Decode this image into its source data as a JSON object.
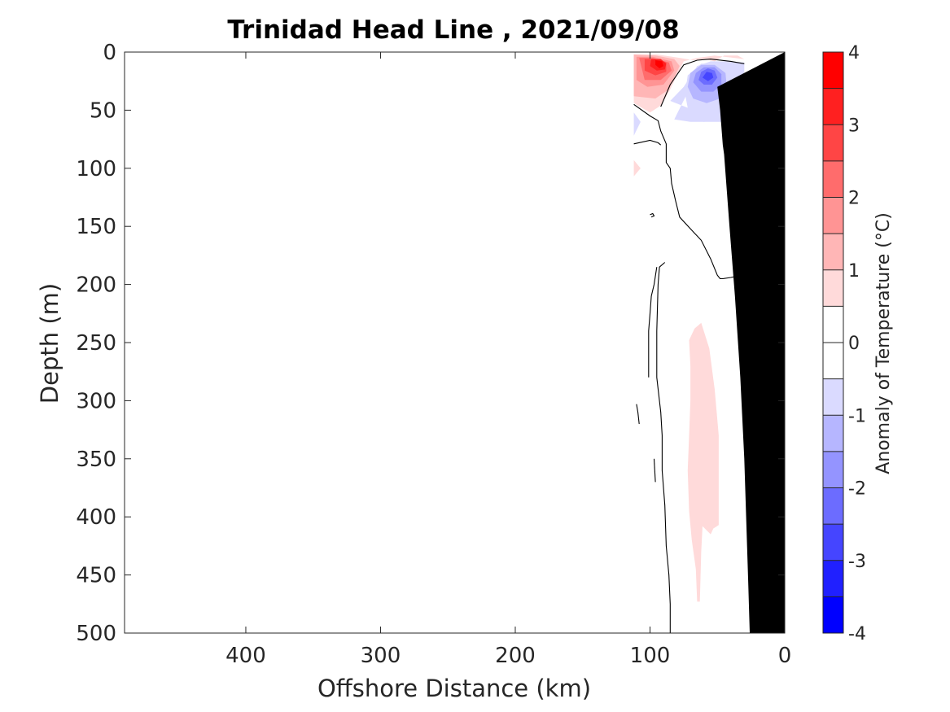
{
  "chart_data": {
    "type": "heatmap",
    "title": "Trinidad Head Line , 2021/09/08",
    "xlabel": "Offshore Distance (km)",
    "ylabel": "Depth (m)",
    "xlim": [
      490,
      0
    ],
    "ylim": [
      0,
      500
    ],
    "x_reversed": true,
    "y_reversed": true,
    "x_ticks": [
      400,
      300,
      200,
      100,
      0
    ],
    "y_ticks": [
      0,
      50,
      100,
      150,
      200,
      250,
      300,
      350,
      400,
      450,
      500
    ],
    "colorbar": {
      "label": "Anomaly of Temperature (°C)",
      "ticks": [
        4,
        3,
        2,
        1,
        0,
        -1,
        -2,
        -3,
        -4
      ],
      "levels": [
        {
          "lo": 3.5,
          "hi": 4.0,
          "color": "#ff0000"
        },
        {
          "lo": 3.0,
          "hi": 3.5,
          "color": "#ff2020"
        },
        {
          "lo": 2.5,
          "hi": 3.0,
          "color": "#ff4545"
        },
        {
          "lo": 2.0,
          "hi": 2.5,
          "color": "#ff6c6c"
        },
        {
          "lo": 1.5,
          "hi": 2.0,
          "color": "#ff9494"
        },
        {
          "lo": 1.0,
          "hi": 1.5,
          "color": "#ffb6b6"
        },
        {
          "lo": 0.5,
          "hi": 1.0,
          "color": "#ffdada"
        },
        {
          "lo": 0.0,
          "hi": 0.5,
          "color": "#ffffff"
        },
        {
          "lo": -0.5,
          "hi": 0.0,
          "color": "#ffffff"
        },
        {
          "lo": -1.0,
          "hi": -0.5,
          "color": "#dadaff"
        },
        {
          "lo": -1.5,
          "hi": -1.0,
          "color": "#b6b6ff"
        },
        {
          "lo": -2.0,
          "hi": -1.5,
          "color": "#9494ff"
        },
        {
          "lo": -2.5,
          "hi": -2.0,
          "color": "#6c6cff"
        },
        {
          "lo": -3.0,
          "hi": -2.5,
          "color": "#4545ff"
        },
        {
          "lo": -3.5,
          "hi": -3.0,
          "color": "#2020ff"
        },
        {
          "lo": -4.0,
          "hi": -3.5,
          "color": "#0000ff"
        }
      ]
    },
    "regions": [
      {
        "anomaly": 0.75,
        "points": [
          [
            112,
            2
          ],
          [
            95,
            2
          ],
          [
            78,
            5
          ],
          [
            68,
            7
          ],
          [
            60,
            6
          ],
          [
            52,
            8
          ],
          [
            45,
            3
          ],
          [
            35,
            3
          ],
          [
            30,
            6
          ],
          [
            52,
            3
          ],
          [
            65,
            5
          ],
          [
            75,
            8
          ],
          [
            85,
            32
          ],
          [
            92,
            46
          ],
          [
            100,
            52
          ],
          [
            112,
            44
          ]
        ]
      },
      {
        "anomaly": 1.25,
        "points": [
          [
            112,
            2
          ],
          [
            96,
            3
          ],
          [
            82,
            6
          ],
          [
            78,
            12
          ],
          [
            86,
            32
          ],
          [
            96,
            40
          ],
          [
            112,
            38
          ]
        ]
      },
      {
        "anomaly": 1.75,
        "points": [
          [
            110,
            4
          ],
          [
            98,
            4
          ],
          [
            84,
            8
          ],
          [
            82,
            16
          ],
          [
            90,
            28
          ],
          [
            102,
            30
          ],
          [
            110,
            24
          ]
        ]
      },
      {
        "anomaly": 2.25,
        "points": [
          [
            108,
            5
          ],
          [
            98,
            5
          ],
          [
            86,
            9
          ],
          [
            84,
            16
          ],
          [
            92,
            24
          ],
          [
            104,
            24
          ]
        ]
      },
      {
        "anomaly": 2.75,
        "points": [
          [
            104,
            6
          ],
          [
            96,
            6
          ],
          [
            88,
            9
          ],
          [
            88,
            17
          ],
          [
            96,
            20
          ],
          [
            104,
            16
          ]
        ]
      },
      {
        "anomaly": 3.25,
        "points": [
          [
            99,
            6
          ],
          [
            92,
            6
          ],
          [
            88,
            10
          ],
          [
            89,
            15
          ],
          [
            95,
            16
          ],
          [
            100,
            12
          ]
        ]
      },
      {
        "anomaly": 3.75,
        "points": [
          [
            96,
            7
          ],
          [
            91,
            8
          ],
          [
            90,
            12
          ],
          [
            93,
            14
          ],
          [
            96,
            11
          ]
        ]
      },
      {
        "anomaly": -0.75,
        "points": [
          [
            85,
            42
          ],
          [
            75,
            30
          ],
          [
            65,
            12
          ],
          [
            55,
            8
          ],
          [
            40,
            8
          ],
          [
            30,
            9
          ],
          [
            30,
            50
          ],
          [
            30,
            86
          ],
          [
            34,
            80
          ],
          [
            34,
            50
          ],
          [
            40,
            30
          ],
          [
            50,
            10
          ],
          [
            60,
            12
          ],
          [
            70,
            30
          ],
          [
            82,
            58
          ],
          [
            70,
            60
          ],
          [
            60,
            60
          ],
          [
            50,
            58
          ]
        ]
      },
      {
        "anomaly": -0.75,
        "points": [
          [
            74,
            36
          ],
          [
            72,
            20
          ],
          [
            62,
            10
          ],
          [
            50,
            10
          ],
          [
            42,
            18
          ],
          [
            38,
            32
          ],
          [
            34,
            50
          ],
          [
            30,
            88
          ],
          [
            30,
            60
          ],
          [
            34,
            56
          ],
          [
            40,
            60
          ],
          [
            50,
            60
          ],
          [
            60,
            60
          ],
          [
            68,
            58
          ],
          [
            72,
            48
          ]
        ]
      },
      {
        "anomaly": -1.25,
        "points": [
          [
            72,
            30
          ],
          [
            70,
            18
          ],
          [
            62,
            11
          ],
          [
            52,
            11
          ],
          [
            44,
            18
          ],
          [
            43,
            30
          ],
          [
            48,
            40
          ],
          [
            58,
            44
          ],
          [
            68,
            40
          ]
        ]
      },
      {
        "anomaly": -1.75,
        "points": [
          [
            68,
            26
          ],
          [
            66,
            18
          ],
          [
            60,
            13
          ],
          [
            52,
            13
          ],
          [
            47,
            19
          ],
          [
            47,
            28
          ],
          [
            53,
            34
          ],
          [
            62,
            34
          ]
        ]
      },
      {
        "anomaly": -2.25,
        "points": [
          [
            64,
            24
          ],
          [
            62,
            17
          ],
          [
            57,
            14
          ],
          [
            52,
            16
          ],
          [
            50,
            22
          ],
          [
            54,
            28
          ],
          [
            60,
            28
          ]
        ]
      },
      {
        "anomaly": -2.75,
        "points": [
          [
            61,
            22
          ],
          [
            58,
            17
          ],
          [
            54,
            18
          ],
          [
            53,
            22
          ],
          [
            57,
            25
          ]
        ]
      },
      {
        "anomaly": -0.75,
        "points": [
          [
            112,
            52
          ],
          [
            107,
            60
          ],
          [
            112,
            72
          ]
        ]
      },
      {
        "anomaly": 0.75,
        "points": [
          [
            112,
            93
          ],
          [
            107,
            100
          ],
          [
            112,
            107
          ]
        ]
      },
      {
        "anomaly": 0.75,
        "points": [
          [
            71,
            248
          ],
          [
            67,
            238
          ],
          [
            62,
            233
          ],
          [
            56,
            255
          ],
          [
            52,
            290
          ],
          [
            49,
            330
          ],
          [
            49,
            380
          ],
          [
            49,
            407
          ],
          [
            53,
            410
          ],
          [
            55,
            415
          ],
          [
            61,
            408
          ],
          [
            62,
            430
          ],
          [
            63,
            473
          ],
          [
            65,
            473
          ],
          [
            66,
            445
          ],
          [
            69,
            420
          ],
          [
            71,
            395
          ],
          [
            72,
            360
          ],
          [
            71,
            330
          ],
          [
            70,
            300
          ],
          [
            70,
            270
          ]
        ]
      }
    ],
    "contours_zero": [
      [
        [
          112,
          45
        ],
        [
          100,
          55
        ],
        [
          94,
          59
        ],
        [
          92,
          68
        ],
        [
          88,
          79
        ],
        [
          88,
          95
        ],
        [
          85,
          100
        ],
        [
          84,
          113
        ],
        [
          81,
          128
        ],
        [
          78,
          142
        ],
        [
          70,
          152
        ],
        [
          62,
          162
        ],
        [
          55,
          178
        ],
        [
          50,
          192
        ],
        [
          48,
          195
        ],
        [
          46,
          195
        ],
        [
          40,
          194
        ],
        [
          36,
          193
        ],
        [
          32,
          192
        ],
        [
          30,
          192
        ]
      ],
      [
        [
          112,
          79
        ],
        [
          100,
          76
        ],
        [
          94,
          78
        ],
        [
          92,
          80
        ]
      ],
      [
        [
          30,
          10
        ],
        [
          40,
          8
        ],
        [
          55,
          6
        ],
        [
          65,
          7
        ],
        [
          75,
          11
        ],
        [
          85,
          28
        ],
        [
          92,
          47
        ]
      ],
      [
        [
          89,
          181
        ],
        [
          93,
          185
        ],
        [
          94,
          200
        ],
        [
          95,
          240
        ],
        [
          95,
          280
        ],
        [
          92,
          310
        ],
        [
          91,
          330
        ],
        [
          91,
          360
        ],
        [
          89,
          390
        ],
        [
          88,
          425
        ],
        [
          86,
          450
        ],
        [
          85,
          475
        ],
        [
          85,
          500
        ]
      ],
      [
        [
          97,
          350
        ],
        [
          96,
          370
        ]
      ],
      [
        [
          95,
          185
        ],
        [
          97,
          200
        ],
        [
          99,
          210
        ],
        [
          100,
          225
        ],
        [
          101,
          240
        ],
        [
          101,
          260
        ],
        [
          101,
          280
        ]
      ],
      [
        [
          100,
          140
        ],
        [
          98,
          139
        ],
        [
          97,
          141
        ],
        [
          99,
          142
        ]
      ],
      [
        [
          110,
          303
        ],
        [
          109,
          310
        ],
        [
          108,
          320
        ]
      ]
    ],
    "bathymetry": {
      "color": "#000000",
      "points": [
        [
          0,
          0
        ],
        [
          0,
          500
        ],
        [
          26,
          500
        ],
        [
          27,
          460
        ],
        [
          30,
          350
        ],
        [
          33,
          280
        ],
        [
          37,
          210
        ],
        [
          41,
          150
        ],
        [
          45,
          88
        ],
        [
          46,
          80
        ],
        [
          48,
          50
        ],
        [
          50,
          30
        ]
      ]
    },
    "data_extent_km": [
      112,
      26
    ]
  }
}
